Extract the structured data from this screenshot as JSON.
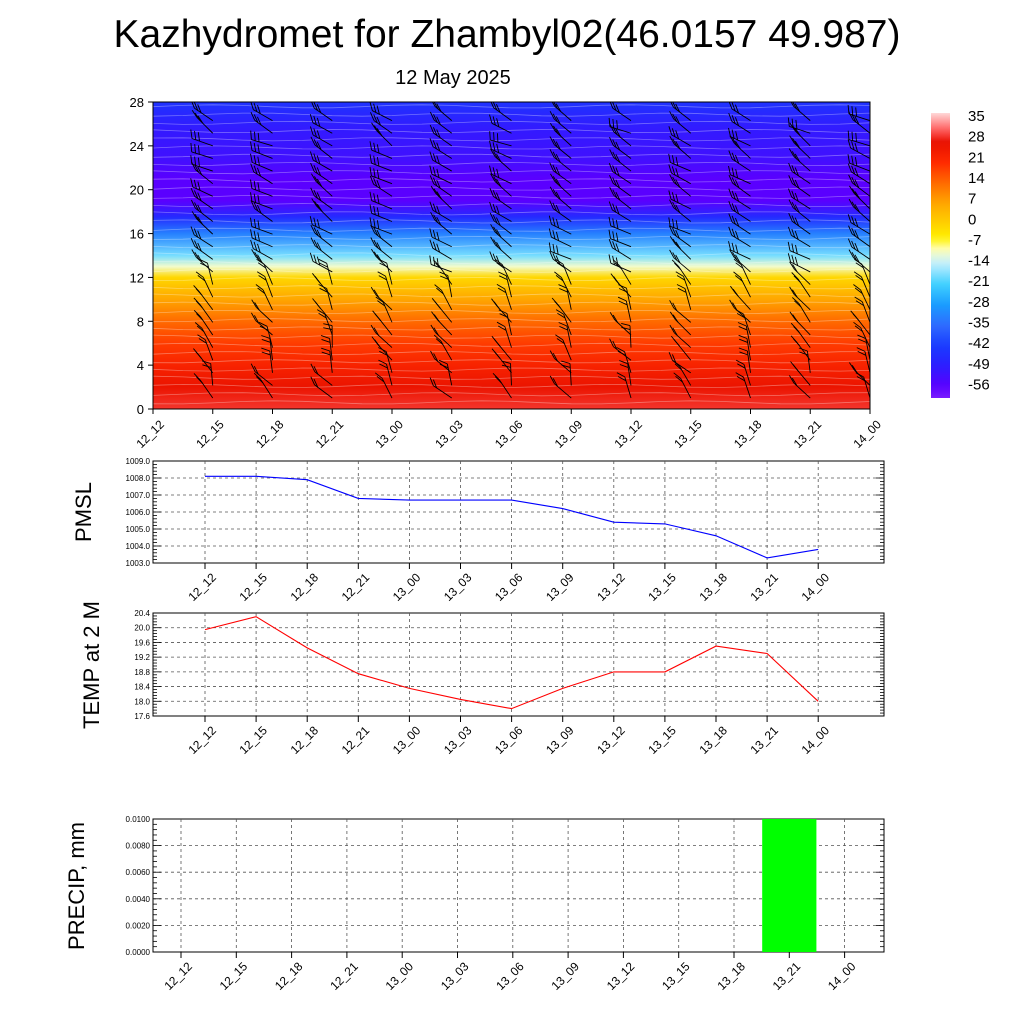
{
  "title": "Kazhydromet for Zhambyl02(46.0157 49.987)",
  "subtitle": "12 May 2025",
  "colors": {
    "pmsl_line": "#0000ff",
    "temp_line": "#ff0000",
    "precip_bar": "#00ff00",
    "grid": "#555555",
    "barb": "#000000"
  },
  "chart_data": [
    {
      "type": "heatmap",
      "x": [
        "12_12",
        "12_15",
        "12_18",
        "12_21",
        "13_00",
        "13_03",
        "13_06",
        "13_09",
        "13_12",
        "13_15",
        "13_18",
        "13_21",
        "14_00"
      ],
      "ylim": [
        0,
        28
      ],
      "yticks": [
        0,
        4,
        8,
        12,
        16,
        20,
        24,
        28
      ],
      "colorbar": {
        "labels": [
          "35",
          "28",
          "21",
          "14",
          "7",
          "0",
          "-7",
          "-14",
          "-21",
          "-28",
          "-35",
          "-42",
          "-49",
          "-56"
        ],
        "min": -60,
        "max": 38
      },
      "profile": [
        {
          "h": 0,
          "t": 30
        },
        {
          "h": 2,
          "t": 27
        },
        {
          "h": 4,
          "t": 23
        },
        {
          "h": 6,
          "t": 19
        },
        {
          "h": 8,
          "t": 14
        },
        {
          "h": 10,
          "t": 7
        },
        {
          "h": 12,
          "t": -1
        },
        {
          "h": 13,
          "t": -10
        },
        {
          "h": 14,
          "t": -18
        },
        {
          "h": 16,
          "t": -32
        },
        {
          "h": 17.5,
          "t": -46
        },
        {
          "h": 19,
          "t": -56
        },
        {
          "h": 21,
          "t": -56
        },
        {
          "h": 23,
          "t": -52
        },
        {
          "h": 25.5,
          "t": -50
        },
        {
          "h": 28,
          "t": -44
        }
      ],
      "wind_barbs": "black wind barbs at each time and height"
    },
    {
      "type": "line",
      "ylabel": "PMSL",
      "x": [
        "12_12",
        "12_15",
        "12_18",
        "12_21",
        "13_00",
        "13_03",
        "13_06",
        "13_09",
        "13_12",
        "13_15",
        "13_18",
        "13_21",
        "14_00"
      ],
      "values": [
        1008.1,
        1008.1,
        1007.9,
        1006.8,
        1006.7,
        1006.7,
        1006.7,
        1006.2,
        1005.4,
        1005.3,
        1004.6,
        1003.3,
        1003.8
      ],
      "ylim": [
        1003.0,
        1009.0
      ],
      "yticks": [
        "1003.0",
        "1004.0",
        "1005.0",
        "1006.0",
        "1007.0",
        "1008.0",
        "1009.0"
      ],
      "grid": true
    },
    {
      "type": "line",
      "ylabel": "TEMP at 2 M",
      "x": [
        "12_12",
        "12_15",
        "12_18",
        "12_21",
        "13_00",
        "13_03",
        "13_06",
        "13_09",
        "13_12",
        "13_15",
        "13_18",
        "13_21",
        "14_00"
      ],
      "values": [
        19.95,
        20.3,
        19.45,
        18.75,
        18.35,
        18.05,
        17.8,
        18.35,
        18.8,
        18.8,
        19.5,
        19.3,
        18.0
      ],
      "ylim": [
        17.6,
        20.4
      ],
      "yticks": [
        "17.6",
        "18.0",
        "18.4",
        "18.8",
        "19.2",
        "19.6",
        "20.0",
        "20.4"
      ],
      "grid": true
    },
    {
      "type": "bar",
      "ylabel": "PRECIP, mm",
      "x": [
        "12_12",
        "12_15",
        "12_18",
        "12_21",
        "13_00",
        "13_03",
        "13_06",
        "13_09",
        "13_12",
        "13_15",
        "13_18",
        "13_21",
        "14_00"
      ],
      "values": [
        0,
        0,
        0,
        0,
        0,
        0,
        0,
        0,
        0,
        0,
        0,
        0.01,
        0
      ],
      "ylim": [
        0,
        0.01
      ],
      "yticks": [
        "0.0000",
        "0.0020",
        "0.0040",
        "0.0060",
        "0.0080",
        "0.0100"
      ],
      "grid": true
    }
  ]
}
